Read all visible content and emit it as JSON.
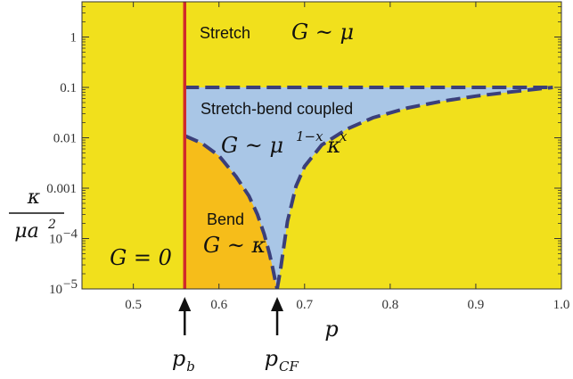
{
  "chart_data": {
    "type": "phase-diagram",
    "x_axis": {
      "label": "p",
      "range": [
        0.44,
        1.0
      ],
      "ticks": [
        {
          "value": 0.5,
          "label": "0.5"
        },
        {
          "value": 0.6,
          "label": "0.6"
        },
        {
          "value": 0.7,
          "label": "0.7"
        },
        {
          "value": 0.8,
          "label": "0.8"
        },
        {
          "value": 0.9,
          "label": "0.9"
        },
        {
          "value": 1.0,
          "label": "1.0"
        }
      ]
    },
    "y_axis": {
      "label_numerator": "κ",
      "label_denominator": "μa",
      "label_denominator_exp": "2",
      "scale": "log",
      "range": [
        1e-05,
        5
      ],
      "ticks": [
        {
          "value": 1,
          "label": "1"
        },
        {
          "value": 0.1,
          "label": "0.1"
        },
        {
          "value": 0.01,
          "label": "0.01"
        },
        {
          "value": 0.001,
          "label": "0.001"
        },
        {
          "value": 0.0001,
          "label": "10",
          "sup": "−4"
        },
        {
          "value": 1e-05,
          "label": "10",
          "sup": "−5"
        }
      ]
    },
    "thresholds": {
      "p_b": 0.56,
      "p_CF": 0.668,
      "stretch_bend_upper_kappa": 0.1,
      "bend_upper_kappa_at_pb": 0.011
    },
    "boundaries": {
      "stretch_bend_lower": {
        "p": [
          0.668,
          0.672,
          0.68,
          0.69,
          0.7,
          0.72,
          0.75,
          0.78,
          0.82,
          0.86,
          0.9,
          0.94,
          0.97,
          0.99
        ],
        "kappa": [
          1e-05,
          2.5e-05,
          0.00022,
          0.0011,
          0.0027,
          0.0072,
          0.015,
          0.025,
          0.039,
          0.053,
          0.067,
          0.081,
          0.092,
          0.1
        ]
      },
      "bend_upper": {
        "p": [
          0.56,
          0.58,
          0.6,
          0.62,
          0.635,
          0.645,
          0.653,
          0.659,
          0.663,
          0.666,
          0.668
        ],
        "kappa": [
          0.011,
          0.0078,
          0.0044,
          0.0017,
          0.0007,
          0.0003,
          0.00012,
          5e-05,
          2.5e-05,
          1.4e-05,
          1e-05
        ]
      }
    },
    "regions": [
      {
        "id": "rigidity-zero",
        "text": "G = 0",
        "color": "#c0c0c0"
      },
      {
        "id": "stretch",
        "name": "Stretch",
        "formula": "G ~ μ",
        "color": "#f1e01c"
      },
      {
        "id": "coupled",
        "name": "Stretch-bend coupled",
        "formula_base": "G ~ μ",
        "formula_exp1": "1−x",
        "formula_mid": "κ",
        "formula_exp2": "x",
        "color": "#a9c6e6"
      },
      {
        "id": "bend",
        "name": "Bend",
        "formula": "G ~ κ",
        "color": "#f6bd1a"
      }
    ],
    "markers": [
      {
        "id": "pb",
        "base": "p",
        "sub": "b"
      },
      {
        "id": "pcf",
        "base": "p",
        "sub": "CF"
      }
    ],
    "colors": {
      "rigidity_line": "#d12a2a",
      "boundary_dash": "#3b3f7a",
      "frame": "#333333"
    }
  }
}
